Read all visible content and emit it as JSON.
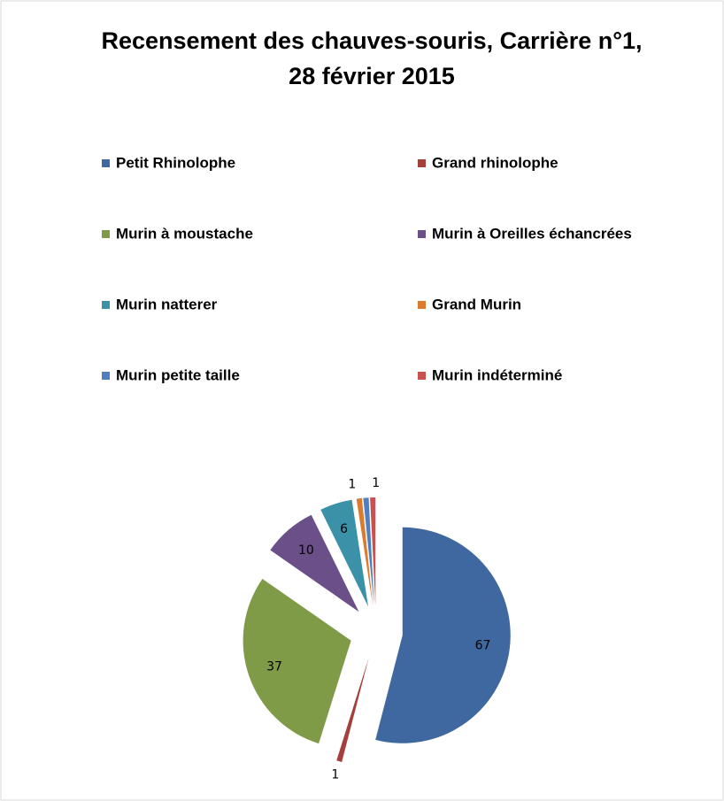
{
  "chart_data": {
    "type": "pie",
    "title": "Recensement des chauves-souris, Carrière n°1,",
    "subtitle": "28 février 2015",
    "categories": [
      "Petit Rhinolophe",
      "Grand rhinolophe",
      "Murin à moustache",
      "Murin à Oreilles échancrées",
      "Murin natterer",
      "Grand Murin",
      "Murin petite taille",
      "Murin indéterminé"
    ],
    "values": [
      67,
      1,
      37,
      10,
      6,
      1,
      1,
      1
    ],
    "value_labels": [
      "67",
      "1",
      "37",
      "10",
      "6",
      "1",
      null,
      "1"
    ],
    "colors": [
      "#3f68a0",
      "#a53f3c",
      "#7f9b47",
      "#6a4f88",
      "#3a91a8",
      "#dc7b2d",
      "#4f7fc1",
      "#c9514e"
    ],
    "exploded": true
  }
}
